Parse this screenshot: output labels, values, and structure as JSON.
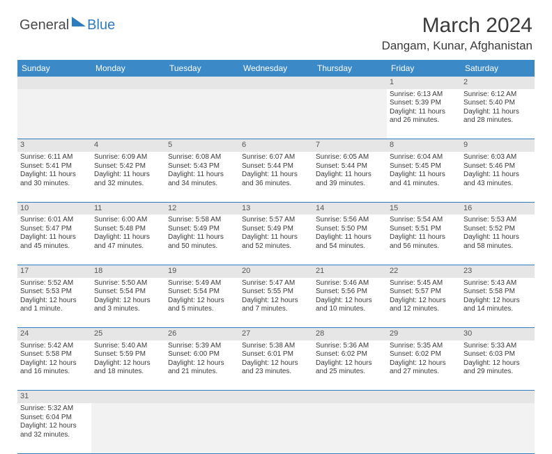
{
  "logo": {
    "textGray": "General",
    "textBlue": "Blue"
  },
  "title": "March 2024",
  "location": "Dangam, Kunar, Afghanistan",
  "colors": {
    "headerBar": "#3b89c7",
    "accent": "#2e7cc0",
    "dayNumBg": "#e6e6e6",
    "text": "#3a3a3a",
    "bg": "#ffffff"
  },
  "dayHeaders": [
    "Sunday",
    "Monday",
    "Tuesday",
    "Wednesday",
    "Thursday",
    "Friday",
    "Saturday"
  ],
  "weeks": [
    {
      "nums": [
        "",
        "",
        "",
        "",
        "",
        "1",
        "2"
      ],
      "cells": [
        null,
        null,
        null,
        null,
        null,
        {
          "sunrise": "Sunrise: 6:13 AM",
          "sunset": "Sunset: 5:39 PM",
          "day1": "Daylight: 11 hours",
          "day2": "and 26 minutes."
        },
        {
          "sunrise": "Sunrise: 6:12 AM",
          "sunset": "Sunset: 5:40 PM",
          "day1": "Daylight: 11 hours",
          "day2": "and 28 minutes."
        }
      ]
    },
    {
      "nums": [
        "3",
        "4",
        "5",
        "6",
        "7",
        "8",
        "9"
      ],
      "cells": [
        {
          "sunrise": "Sunrise: 6:11 AM",
          "sunset": "Sunset: 5:41 PM",
          "day1": "Daylight: 11 hours",
          "day2": "and 30 minutes."
        },
        {
          "sunrise": "Sunrise: 6:09 AM",
          "sunset": "Sunset: 5:42 PM",
          "day1": "Daylight: 11 hours",
          "day2": "and 32 minutes."
        },
        {
          "sunrise": "Sunrise: 6:08 AM",
          "sunset": "Sunset: 5:43 PM",
          "day1": "Daylight: 11 hours",
          "day2": "and 34 minutes."
        },
        {
          "sunrise": "Sunrise: 6:07 AM",
          "sunset": "Sunset: 5:44 PM",
          "day1": "Daylight: 11 hours",
          "day2": "and 36 minutes."
        },
        {
          "sunrise": "Sunrise: 6:05 AM",
          "sunset": "Sunset: 5:44 PM",
          "day1": "Daylight: 11 hours",
          "day2": "and 39 minutes."
        },
        {
          "sunrise": "Sunrise: 6:04 AM",
          "sunset": "Sunset: 5:45 PM",
          "day1": "Daylight: 11 hours",
          "day2": "and 41 minutes."
        },
        {
          "sunrise": "Sunrise: 6:03 AM",
          "sunset": "Sunset: 5:46 PM",
          "day1": "Daylight: 11 hours",
          "day2": "and 43 minutes."
        }
      ]
    },
    {
      "nums": [
        "10",
        "11",
        "12",
        "13",
        "14",
        "15",
        "16"
      ],
      "cells": [
        {
          "sunrise": "Sunrise: 6:01 AM",
          "sunset": "Sunset: 5:47 PM",
          "day1": "Daylight: 11 hours",
          "day2": "and 45 minutes."
        },
        {
          "sunrise": "Sunrise: 6:00 AM",
          "sunset": "Sunset: 5:48 PM",
          "day1": "Daylight: 11 hours",
          "day2": "and 47 minutes."
        },
        {
          "sunrise": "Sunrise: 5:58 AM",
          "sunset": "Sunset: 5:49 PM",
          "day1": "Daylight: 11 hours",
          "day2": "and 50 minutes."
        },
        {
          "sunrise": "Sunrise: 5:57 AM",
          "sunset": "Sunset: 5:49 PM",
          "day1": "Daylight: 11 hours",
          "day2": "and 52 minutes."
        },
        {
          "sunrise": "Sunrise: 5:56 AM",
          "sunset": "Sunset: 5:50 PM",
          "day1": "Daylight: 11 hours",
          "day2": "and 54 minutes."
        },
        {
          "sunrise": "Sunrise: 5:54 AM",
          "sunset": "Sunset: 5:51 PM",
          "day1": "Daylight: 11 hours",
          "day2": "and 56 minutes."
        },
        {
          "sunrise": "Sunrise: 5:53 AM",
          "sunset": "Sunset: 5:52 PM",
          "day1": "Daylight: 11 hours",
          "day2": "and 58 minutes."
        }
      ]
    },
    {
      "nums": [
        "17",
        "18",
        "19",
        "20",
        "21",
        "22",
        "23"
      ],
      "cells": [
        {
          "sunrise": "Sunrise: 5:52 AM",
          "sunset": "Sunset: 5:53 PM",
          "day1": "Daylight: 12 hours",
          "day2": "and 1 minute."
        },
        {
          "sunrise": "Sunrise: 5:50 AM",
          "sunset": "Sunset: 5:54 PM",
          "day1": "Daylight: 12 hours",
          "day2": "and 3 minutes."
        },
        {
          "sunrise": "Sunrise: 5:49 AM",
          "sunset": "Sunset: 5:54 PM",
          "day1": "Daylight: 12 hours",
          "day2": "and 5 minutes."
        },
        {
          "sunrise": "Sunrise: 5:47 AM",
          "sunset": "Sunset: 5:55 PM",
          "day1": "Daylight: 12 hours",
          "day2": "and 7 minutes."
        },
        {
          "sunrise": "Sunrise: 5:46 AM",
          "sunset": "Sunset: 5:56 PM",
          "day1": "Daylight: 12 hours",
          "day2": "and 10 minutes."
        },
        {
          "sunrise": "Sunrise: 5:45 AM",
          "sunset": "Sunset: 5:57 PM",
          "day1": "Daylight: 12 hours",
          "day2": "and 12 minutes."
        },
        {
          "sunrise": "Sunrise: 5:43 AM",
          "sunset": "Sunset: 5:58 PM",
          "day1": "Daylight: 12 hours",
          "day2": "and 14 minutes."
        }
      ]
    },
    {
      "nums": [
        "24",
        "25",
        "26",
        "27",
        "28",
        "29",
        "30"
      ],
      "cells": [
        {
          "sunrise": "Sunrise: 5:42 AM",
          "sunset": "Sunset: 5:58 PM",
          "day1": "Daylight: 12 hours",
          "day2": "and 16 minutes."
        },
        {
          "sunrise": "Sunrise: 5:40 AM",
          "sunset": "Sunset: 5:59 PM",
          "day1": "Daylight: 12 hours",
          "day2": "and 18 minutes."
        },
        {
          "sunrise": "Sunrise: 5:39 AM",
          "sunset": "Sunset: 6:00 PM",
          "day1": "Daylight: 12 hours",
          "day2": "and 21 minutes."
        },
        {
          "sunrise": "Sunrise: 5:38 AM",
          "sunset": "Sunset: 6:01 PM",
          "day1": "Daylight: 12 hours",
          "day2": "and 23 minutes."
        },
        {
          "sunrise": "Sunrise: 5:36 AM",
          "sunset": "Sunset: 6:02 PM",
          "day1": "Daylight: 12 hours",
          "day2": "and 25 minutes."
        },
        {
          "sunrise": "Sunrise: 5:35 AM",
          "sunset": "Sunset: 6:02 PM",
          "day1": "Daylight: 12 hours",
          "day2": "and 27 minutes."
        },
        {
          "sunrise": "Sunrise: 5:33 AM",
          "sunset": "Sunset: 6:03 PM",
          "day1": "Daylight: 12 hours",
          "day2": "and 29 minutes."
        }
      ]
    },
    {
      "nums": [
        "31",
        "",
        "",
        "",
        "",
        "",
        ""
      ],
      "cells": [
        {
          "sunrise": "Sunrise: 5:32 AM",
          "sunset": "Sunset: 6:04 PM",
          "day1": "Daylight: 12 hours",
          "day2": "and 32 minutes."
        },
        null,
        null,
        null,
        null,
        null,
        null
      ]
    }
  ]
}
